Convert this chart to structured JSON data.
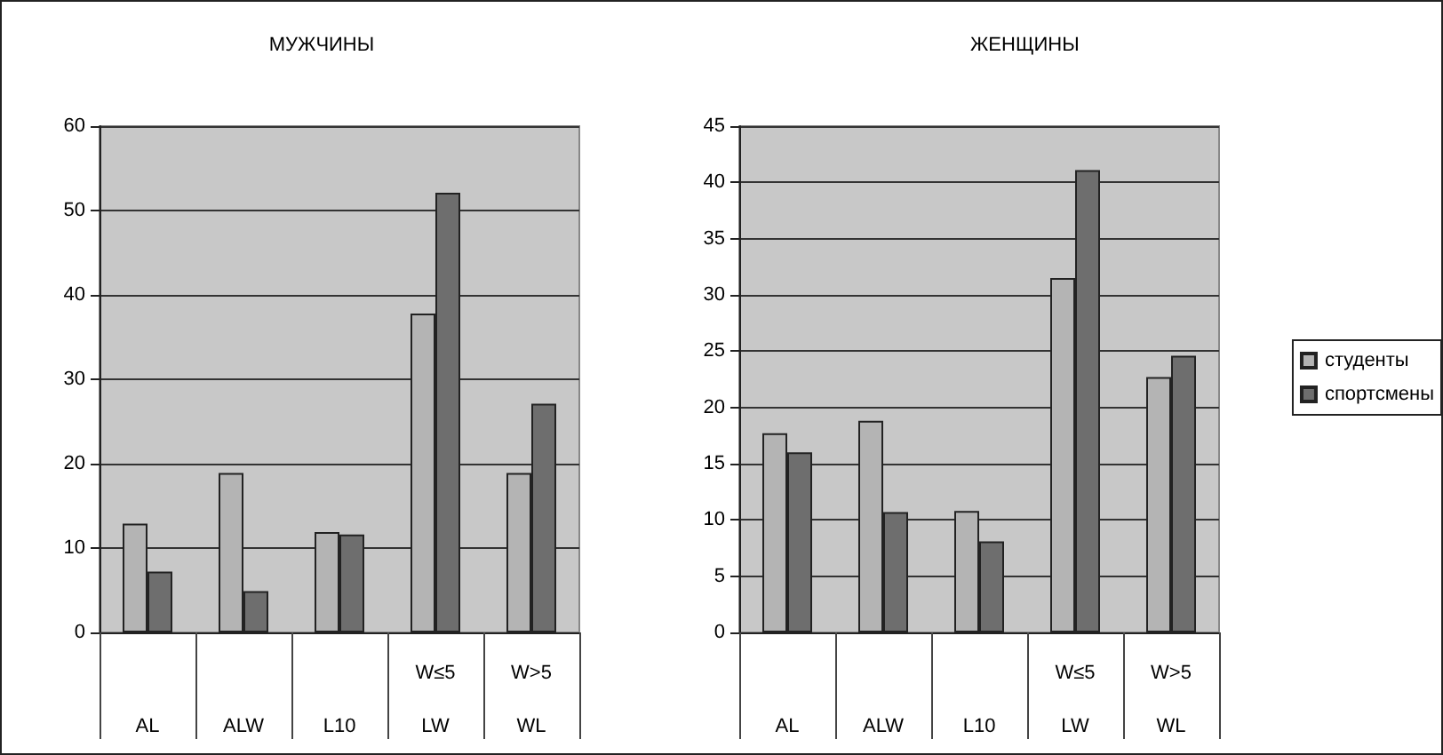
{
  "chart_data": [
    {
      "type": "bar",
      "title": "МУЖЧИНЫ",
      "categories": [
        "AL",
        "ALW",
        "L10",
        "W≤5\nLW",
        "W>5\nWL"
      ],
      "series": [
        {
          "color": "#b4b4b4",
          "values": [
            12.9,
            18.9,
            11.9,
            37.8,
            18.9
          ]
        },
        {
          "color": "#6e6e6e",
          "values": [
            7.2,
            4.9,
            11.6,
            52.1,
            27.1
          ]
        }
      ],
      "ylim": [
        0,
        60
      ],
      "yticks": [
        0,
        10,
        20,
        30,
        40,
        50,
        60
      ],
      "grid": "y",
      "legend": false
    },
    {
      "type": "bar",
      "title": "ЖЕНЩИНЫ",
      "categories": [
        "AL",
        "ALW",
        "L10",
        "W≤5\nLW",
        "W>5\nWL"
      ],
      "series": [
        {
          "name": "студенты",
          "color": "#b4b4b4",
          "values": [
            17.7,
            18.8,
            10.8,
            31.5,
            22.7
          ]
        },
        {
          "name": "спортсмены",
          "color": "#6e6e6e",
          "values": [
            16,
            10.7,
            8.1,
            41.1,
            24.6
          ]
        }
      ],
      "ylim": [
        0,
        45
      ],
      "yticks": [
        0,
        5,
        10,
        15,
        20,
        25,
        30,
        35,
        40,
        45
      ],
      "grid": "y",
      "legend": "right"
    }
  ]
}
